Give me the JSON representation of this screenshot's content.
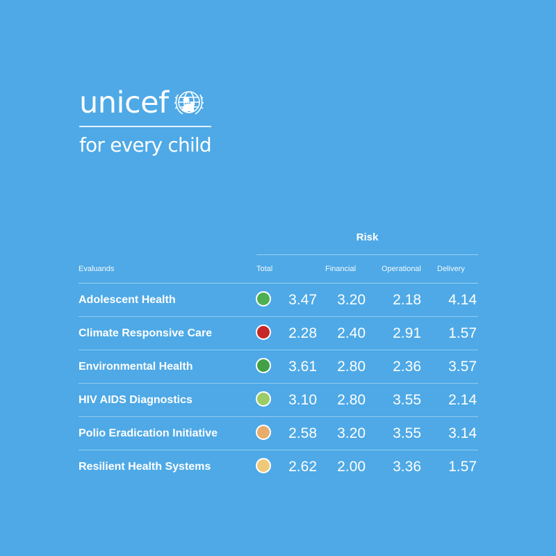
{
  "logo": {
    "wordmark": "unicef",
    "tagline": "for every child"
  },
  "chart_data": {
    "type": "table",
    "group_header": "Risk",
    "columns": [
      "Evaluands",
      "Total",
      "Financial",
      "Operational",
      "Delivery"
    ],
    "rows": [
      {
        "evaluand": "Adolescent Health",
        "status_color": "#4caf50",
        "total": "3.47",
        "financial": "3.20",
        "operational": "2.18",
        "delivery": "4.14"
      },
      {
        "evaluand": "Climate Responsive Care",
        "status_color": "#c62828",
        "total": "2.28",
        "financial": "2.40",
        "operational": "2.91",
        "delivery": "1.57"
      },
      {
        "evaluand": "Environmental Health",
        "status_color": "#43a047",
        "total": "3.61",
        "financial": "2.80",
        "operational": "2.36",
        "delivery": "3.57"
      },
      {
        "evaluand": "HIV AIDS Diagnostics",
        "status_color": "#9ccc65",
        "total": "3.10",
        "financial": "2.80",
        "operational": "3.55",
        "delivery": "2.14"
      },
      {
        "evaluand": "Polio Eradication Initiative",
        "status_color": "#e8ac6a",
        "total": "2.58",
        "financial": "3.20",
        "operational": "3.55",
        "delivery": "3.14"
      },
      {
        "evaluand": "Resilient Health Systems",
        "status_color": "#f0c978",
        "total": "2.62",
        "financial": "2.00",
        "operational": "3.36",
        "delivery": "1.57"
      }
    ]
  },
  "colors": {
    "background": "#4ea9e6",
    "text": "#ffffff"
  }
}
